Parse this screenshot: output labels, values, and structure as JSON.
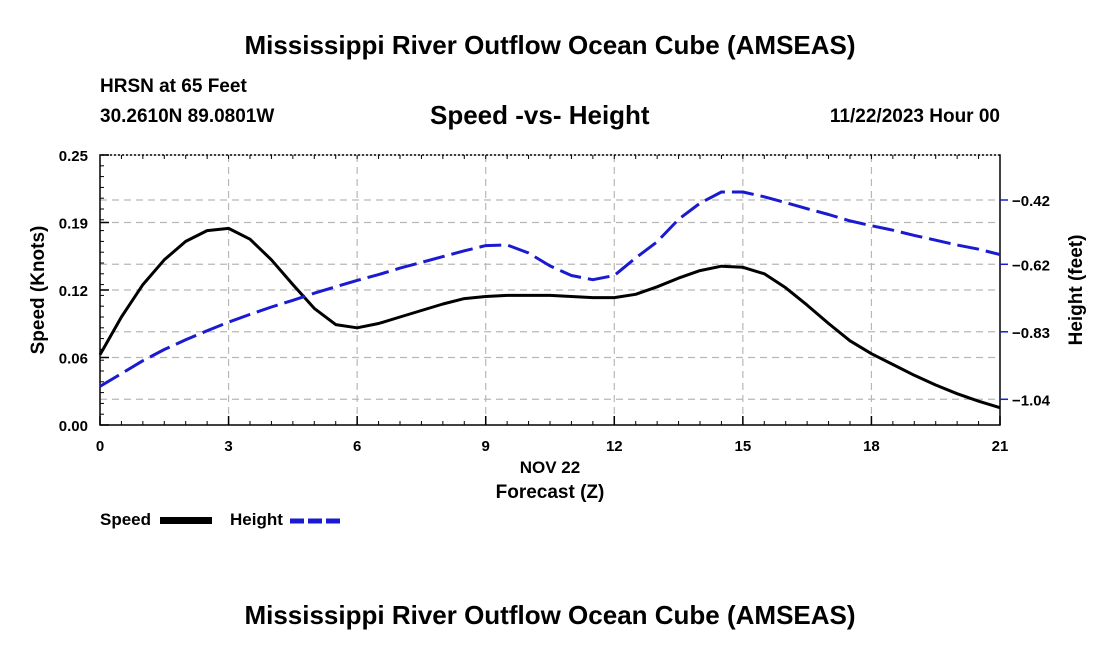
{
  "header": {
    "title": "Mississippi River Outflow Ocean Cube (AMSEAS)",
    "location_name": "HRSN at 65 Feet",
    "coordinates": "30.2610N  89.0801W",
    "subtitle": "Speed -vs- Height",
    "datetime": "11/22/2023 Hour 00"
  },
  "footer": {
    "title": "Mississippi River Outflow Ocean Cube (AMSEAS)"
  },
  "legend": {
    "speed_label": "Speed",
    "height_label": "Height"
  },
  "colors": {
    "speed": "#000000",
    "height": "#1a1ad0",
    "grid": "#b8b8b8"
  },
  "chart_data": {
    "type": "line",
    "title": "Speed -vs- Height",
    "xlabel": "Forecast (Z)",
    "xdate_label": "NOV 22",
    "ylabel": "Speed (Knots)",
    "y2label": "Height (feet)",
    "xlim": [
      0,
      21
    ],
    "ylim": [
      0,
      0.25
    ],
    "y2lim": [
      -1.12,
      -0.28
    ],
    "grid": true,
    "x_ticks": [
      0,
      3,
      6,
      9,
      12,
      15,
      18,
      21
    ],
    "x_tick_labels": [
      "0",
      "3",
      "6",
      "9",
      "12",
      "15",
      "18",
      "21"
    ],
    "y_ticks": [
      0,
      0.0625,
      0.125,
      0.1875,
      0.25
    ],
    "y_tick_labels": [
      "0.00",
      "0.06",
      "0.12",
      "0.19",
      "0.25"
    ],
    "y2_ticks": [
      -1.04,
      -0.83,
      -0.62,
      -0.42
    ],
    "y2_tick_labels": [
      "−1.04",
      "−0.83",
      "−0.62",
      "−0.42"
    ],
    "series": [
      {
        "name": "Speed",
        "axis": "left",
        "style": "solid",
        "x": [
          0,
          0.5,
          1,
          1.5,
          2,
          2.5,
          3,
          3.5,
          4,
          4.5,
          5,
          5.5,
          6,
          6.5,
          7,
          7.5,
          8,
          8.5,
          9,
          9.5,
          10,
          10.5,
          11,
          11.5,
          12,
          12.5,
          13,
          13.5,
          14,
          14.5,
          15,
          15.5,
          16,
          16.5,
          17,
          17.5,
          18,
          18.5,
          19,
          19.5,
          20,
          20.5,
          21
        ],
        "values": [
          0.065,
          0.1,
          0.13,
          0.153,
          0.17,
          0.18,
          0.182,
          0.172,
          0.153,
          0.13,
          0.108,
          0.093,
          0.09,
          0.094,
          0.1,
          0.106,
          0.112,
          0.117,
          0.119,
          0.12,
          0.12,
          0.12,
          0.119,
          0.118,
          0.118,
          0.121,
          0.128,
          0.136,
          0.143,
          0.147,
          0.146,
          0.14,
          0.127,
          0.111,
          0.094,
          0.078,
          0.066,
          0.056,
          0.046,
          0.037,
          0.029,
          0.022,
          0.016
        ]
      },
      {
        "name": "Height",
        "axis": "right",
        "style": "dashed",
        "x": [
          0,
          0.5,
          1,
          1.5,
          2,
          2.5,
          3,
          3.5,
          4,
          4.5,
          5,
          5.5,
          6,
          6.5,
          7,
          7.5,
          8,
          8.5,
          9,
          9.5,
          10,
          10.5,
          11,
          11.5,
          12,
          12.5,
          13,
          13.5,
          14,
          14.5,
          15,
          15.5,
          16,
          16.5,
          17,
          17.5,
          18,
          18.5,
          19,
          19.5,
          20,
          20.5,
          21
        ],
        "values": [
          -1.0,
          -0.96,
          -0.92,
          -0.885,
          -0.855,
          -0.827,
          -0.8,
          -0.776,
          -0.753,
          -0.732,
          -0.71,
          -0.69,
          -0.67,
          -0.652,
          -0.632,
          -0.614,
          -0.596,
          -0.578,
          -0.562,
          -0.56,
          -0.585,
          -0.625,
          -0.655,
          -0.668,
          -0.655,
          -0.6,
          -0.55,
          -0.48,
          -0.43,
          -0.395,
          -0.395,
          -0.41,
          -0.428,
          -0.447,
          -0.465,
          -0.485,
          -0.5,
          -0.514,
          -0.53,
          -0.545,
          -0.56,
          -0.573,
          -0.59
        ]
      }
    ]
  }
}
